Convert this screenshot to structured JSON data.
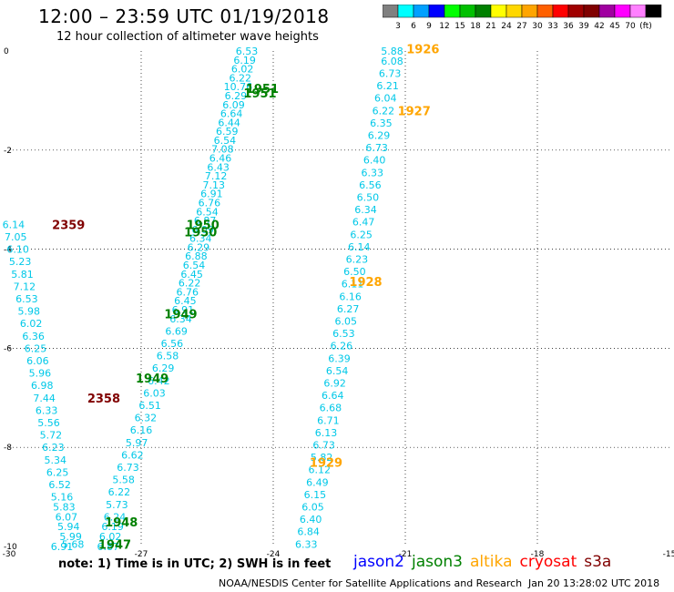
{
  "header": {
    "title": "12:00 – 23:59 UTC 01/19/2018",
    "subtitle": "12 hour collection of altimeter wave heights"
  },
  "colorbar": {
    "labels": [
      "3",
      "6",
      "9",
      "12",
      "15",
      "18",
      "21",
      "24",
      "27",
      "30",
      "33",
      "36",
      "39",
      "42",
      "45",
      "70",
      "(ft)"
    ],
    "colors": [
      "#808080",
      "#00ffff",
      "#00a0ff",
      "#0000ff",
      "#00ff00",
      "#00c000",
      "#008000",
      "#ffff00",
      "#ffd700",
      "#ffa500",
      "#ff6000",
      "#ff0000",
      "#a00000",
      "#800000",
      "#a000a0",
      "#ff00ff",
      "#ff80ff",
      "#000000"
    ]
  },
  "footer": {
    "note": "note: 1) Time is in UTC; 2) SWH is in feet",
    "satellites": [
      {
        "name": "jason2",
        "color": "#0000ff"
      },
      {
        "name": "jason3",
        "color": "#008000"
      },
      {
        "name": "altika",
        "color": "#ffa500"
      },
      {
        "name": "cryosat",
        "color": "#ff0000"
      },
      {
        "name": "s3a",
        "color": "#800000"
      }
    ],
    "credit": "NOAA/NESDIS Center for Satellite Applications and Research",
    "timestamp": "Jan 20 13:28:02 UTC 2018"
  },
  "chart_data": {
    "type": "scatter",
    "title": "12:00 – 23:59 UTC 01/19/2018",
    "subtitle": "12 hour collection of altimeter wave heights",
    "xlim": [
      -30,
      -15
    ],
    "ylim": [
      -10,
      0
    ],
    "x_ticks": [
      -30,
      -27,
      -24,
      -21,
      -18,
      -15
    ],
    "y_ticks": [
      0,
      -2,
      -4,
      -6,
      -8,
      -10
    ],
    "x_tick_labels": [
      "-30",
      "-27",
      "-24",
      "-21",
      "-18",
      "-15"
    ],
    "y_tick_labels": [
      "0",
      "-2",
      "-4",
      "-6",
      "-8",
      "-10"
    ],
    "grid": true,
    "value_color": "#00c8e8",
    "time_labels": [
      {
        "text": "1926",
        "x": -20.6,
        "y": 0.05,
        "color": "#ffa500"
      },
      {
        "text": "1927",
        "x": -20.8,
        "y": -1.2,
        "color": "#ffa500"
      },
      {
        "text": "1928",
        "x": -21.9,
        "y": -4.65,
        "color": "#ffa500"
      },
      {
        "text": "1929",
        "x": -22.8,
        "y": -8.3,
        "color": "#ffa500"
      },
      {
        "text": "1951",
        "x": -24.25,
        "y": -0.75,
        "color": "#008000"
      },
      {
        "text": "1951",
        "x": -24.3,
        "y": -0.85,
        "color": "#008000"
      },
      {
        "text": "1950",
        "x": -25.6,
        "y": -3.5,
        "color": "#008000"
      },
      {
        "text": "1950",
        "x": -25.65,
        "y": -3.65,
        "color": "#008000"
      },
      {
        "text": "1949",
        "x": -26.1,
        "y": -5.3,
        "color": "#008000"
      },
      {
        "text": "1949",
        "x": -26.75,
        "y": -6.6,
        "color": "#008000"
      },
      {
        "text": "1948",
        "x": -27.45,
        "y": -9.5,
        "color": "#008000"
      },
      {
        "text": "1947",
        "x": -27.6,
        "y": -9.95,
        "color": "#008000"
      },
      {
        "text": "2359",
        "x": -28.65,
        "y": -3.5,
        "color": "#800000"
      },
      {
        "text": "2358",
        "x": -27.85,
        "y": -7.0,
        "color": "#800000"
      }
    ],
    "series": [
      {
        "name": "1926",
        "color": "#00c8e8",
        "points": [
          {
            "x": -21.3,
            "y": 0.0,
            "v": "5.88"
          },
          {
            "x": -21.3,
            "y": -0.2,
            "v": "6.08"
          },
          {
            "x": -21.35,
            "y": -0.45,
            "v": "6.73"
          },
          {
            "x": -21.4,
            "y": -0.7,
            "v": "6.21"
          },
          {
            "x": -21.45,
            "y": -0.95,
            "v": "6.04"
          },
          {
            "x": -21.5,
            "y": -1.2,
            "v": "6.22"
          },
          {
            "x": -21.55,
            "y": -1.45,
            "v": "6.35"
          },
          {
            "x": -21.6,
            "y": -1.7,
            "v": "6.29"
          },
          {
            "x": -21.65,
            "y": -1.95,
            "v": "6.73"
          },
          {
            "x": -21.7,
            "y": -2.2,
            "v": "6.40"
          },
          {
            "x": -21.75,
            "y": -2.45,
            "v": "6.33"
          },
          {
            "x": -21.8,
            "y": -2.7,
            "v": "6.56"
          },
          {
            "x": -21.85,
            "y": -2.95,
            "v": "6.50"
          },
          {
            "x": -21.9,
            "y": -3.2,
            "v": "6.34"
          },
          {
            "x": -21.95,
            "y": -3.45,
            "v": "6.47"
          },
          {
            "x": -22.0,
            "y": -3.7,
            "v": "6.25"
          },
          {
            "x": -22.05,
            "y": -3.95,
            "v": "6.14"
          },
          {
            "x": -22.1,
            "y": -4.2,
            "v": "6.23"
          },
          {
            "x": -22.15,
            "y": -4.45,
            "v": "6.50"
          },
          {
            "x": -22.2,
            "y": -4.7,
            "v": "6.11"
          },
          {
            "x": -22.25,
            "y": -4.95,
            "v": "6.16"
          },
          {
            "x": -22.3,
            "y": -5.2,
            "v": "6.27"
          },
          {
            "x": -22.35,
            "y": -5.45,
            "v": "6.05"
          },
          {
            "x": -22.4,
            "y": -5.7,
            "v": "6.53"
          },
          {
            "x": -22.45,
            "y": -5.95,
            "v": "6.26"
          },
          {
            "x": -22.5,
            "y": -6.2,
            "v": "6.39"
          },
          {
            "x": -22.55,
            "y": -6.45,
            "v": "6.54"
          },
          {
            "x": -22.6,
            "y": -6.7,
            "v": "6.92"
          },
          {
            "x": -22.65,
            "y": -6.95,
            "v": "6.64"
          },
          {
            "x": -22.7,
            "y": -7.2,
            "v": "6.68"
          },
          {
            "x": -22.75,
            "y": -7.45,
            "v": "6.71"
          },
          {
            "x": -22.8,
            "y": -7.7,
            "v": "6.13"
          },
          {
            "x": -22.85,
            "y": -7.95,
            "v": "6.73"
          },
          {
            "x": -22.9,
            "y": -8.2,
            "v": "5.82"
          },
          {
            "x": -22.95,
            "y": -8.45,
            "v": "6.12"
          },
          {
            "x": -23.0,
            "y": -8.7,
            "v": "6.49"
          },
          {
            "x": -23.05,
            "y": -8.95,
            "v": "6.15"
          },
          {
            "x": -23.1,
            "y": -9.2,
            "v": "6.05"
          },
          {
            "x": -23.15,
            "y": -9.45,
            "v": "6.40"
          },
          {
            "x": -23.2,
            "y": -9.7,
            "v": "6.84"
          },
          {
            "x": -23.25,
            "y": -9.95,
            "v": "6.33"
          }
        ]
      },
      {
        "name": "1947–1951",
        "color": "#00c8e8",
        "points": [
          {
            "x": -24.6,
            "y": 0.0,
            "v": "6.53"
          },
          {
            "x": -24.65,
            "y": -0.18,
            "v": "6.19"
          },
          {
            "x": -24.7,
            "y": -0.36,
            "v": "6.02"
          },
          {
            "x": -24.75,
            "y": -0.54,
            "v": "6.22"
          },
          {
            "x": -24.8,
            "y": -0.72,
            "v": "10.76"
          },
          {
            "x": -24.85,
            "y": -0.9,
            "v": "6.29"
          },
          {
            "x": -24.9,
            "y": -1.08,
            "v": "6.09"
          },
          {
            "x": -24.95,
            "y": -1.26,
            "v": "6.64"
          },
          {
            "x": -25.0,
            "y": -1.44,
            "v": "6.44"
          },
          {
            "x": -25.05,
            "y": -1.62,
            "v": "6.59"
          },
          {
            "x": -25.1,
            "y": -1.8,
            "v": "6.54"
          },
          {
            "x": -25.15,
            "y": -1.98,
            "v": "7.08"
          },
          {
            "x": -25.2,
            "y": -2.16,
            "v": "6.46"
          },
          {
            "x": -25.25,
            "y": -2.34,
            "v": "6.43"
          },
          {
            "x": -25.3,
            "y": -2.52,
            "v": "7.12"
          },
          {
            "x": -25.35,
            "y": -2.7,
            "v": "7.13"
          },
          {
            "x": -25.4,
            "y": -2.88,
            "v": "6.91"
          },
          {
            "x": -25.45,
            "y": -3.06,
            "v": "6.76"
          },
          {
            "x": -25.5,
            "y": -3.24,
            "v": "6.54"
          },
          {
            "x": -25.55,
            "y": -3.42,
            "v": "6.87"
          },
          {
            "x": -25.6,
            "y": -3.6,
            "v": "6.09"
          },
          {
            "x": -25.65,
            "y": -3.78,
            "v": "6.34"
          },
          {
            "x": -25.7,
            "y": -3.96,
            "v": "6.29"
          },
          {
            "x": -25.75,
            "y": -4.14,
            "v": "6.88"
          },
          {
            "x": -25.8,
            "y": -4.32,
            "v": "6.54"
          },
          {
            "x": -25.85,
            "y": -4.5,
            "v": "6.45"
          },
          {
            "x": -25.9,
            "y": -4.68,
            "v": "6.22"
          },
          {
            "x": -25.95,
            "y": -4.86,
            "v": "6.76"
          },
          {
            "x": -26.0,
            "y": -5.04,
            "v": "6.45"
          },
          {
            "x": -26.05,
            "y": -5.22,
            "v": "6.91"
          },
          {
            "x": -26.1,
            "y": -5.4,
            "v": "6.34"
          },
          {
            "x": -26.2,
            "y": -5.65,
            "v": "6.69"
          },
          {
            "x": -26.3,
            "y": -5.9,
            "v": "6.56"
          },
          {
            "x": -26.4,
            "y": -6.15,
            "v": "6.58"
          },
          {
            "x": -26.5,
            "y": -6.4,
            "v": "6.29"
          },
          {
            "x": -26.6,
            "y": -6.65,
            "v": "6.42"
          },
          {
            "x": -26.7,
            "y": -6.9,
            "v": "6.03"
          },
          {
            "x": -26.8,
            "y": -7.15,
            "v": "6.51"
          },
          {
            "x": -26.9,
            "y": -7.4,
            "v": "6.32"
          },
          {
            "x": -27.0,
            "y": -7.65,
            "v": "6.16"
          },
          {
            "x": -27.1,
            "y": -7.9,
            "v": "5.97"
          },
          {
            "x": -27.2,
            "y": -8.15,
            "v": "6.62"
          },
          {
            "x": -27.3,
            "y": -8.4,
            "v": "6.73"
          },
          {
            "x": -27.4,
            "y": -8.65,
            "v": "5.58"
          },
          {
            "x": -27.5,
            "y": -8.9,
            "v": "6.22"
          },
          {
            "x": -27.55,
            "y": -9.15,
            "v": "5.73"
          },
          {
            "x": -27.6,
            "y": -9.4,
            "v": "6.24"
          },
          {
            "x": -27.65,
            "y": -9.6,
            "v": "6.19"
          },
          {
            "x": -27.7,
            "y": -9.8,
            "v": "6.02"
          },
          {
            "x": -27.75,
            "y": -10.0,
            "v": "6.87"
          }
        ]
      },
      {
        "name": "2358–2359",
        "color": "#00c8e8",
        "points": [
          {
            "x": -29.9,
            "y": -3.5,
            "v": "6.14"
          },
          {
            "x": -29.85,
            "y": -3.75,
            "v": "7.05"
          },
          {
            "x": -29.8,
            "y": -4.0,
            "v": "6.10"
          },
          {
            "x": -29.75,
            "y": -4.25,
            "v": "5.23"
          },
          {
            "x": -29.7,
            "y": -4.5,
            "v": "5.81"
          },
          {
            "x": -29.65,
            "y": -4.75,
            "v": "7.12"
          },
          {
            "x": -29.6,
            "y": -5.0,
            "v": "6.53"
          },
          {
            "x": -29.55,
            "y": -5.25,
            "v": "5.98"
          },
          {
            "x": -29.5,
            "y": -5.5,
            "v": "6.02"
          },
          {
            "x": -29.45,
            "y": -5.75,
            "v": "6.36"
          },
          {
            "x": -29.4,
            "y": -6.0,
            "v": "6.25"
          },
          {
            "x": -29.35,
            "y": -6.25,
            "v": "6.06"
          },
          {
            "x": -29.3,
            "y": -6.5,
            "v": "5.96"
          },
          {
            "x": -29.25,
            "y": -6.75,
            "v": "6.98"
          },
          {
            "x": -29.2,
            "y": -7.0,
            "v": "7.44"
          },
          {
            "x": -29.15,
            "y": -7.25,
            "v": "6.33"
          },
          {
            "x": -29.1,
            "y": -7.5,
            "v": "5.56"
          },
          {
            "x": -29.05,
            "y": -7.75,
            "v": "5.72"
          },
          {
            "x": -29.0,
            "y": -8.0,
            "v": "6.23"
          },
          {
            "x": -28.95,
            "y": -8.25,
            "v": "5.34"
          },
          {
            "x": -28.9,
            "y": -8.5,
            "v": "6.25"
          },
          {
            "x": -28.85,
            "y": -8.75,
            "v": "6.52"
          },
          {
            "x": -28.8,
            "y": -9.0,
            "v": "5.16"
          },
          {
            "x": -28.75,
            "y": -9.2,
            "v": "5.83"
          },
          {
            "x": -28.7,
            "y": -9.4,
            "v": "6.07"
          },
          {
            "x": -28.65,
            "y": -9.6,
            "v": "5.94"
          },
          {
            "x": -28.6,
            "y": -9.8,
            "v": "5.99"
          },
          {
            "x": -28.55,
            "y": -9.95,
            "v": "5.68"
          },
          {
            "x": -28.8,
            "y": -10.0,
            "v": "6.91"
          }
        ]
      }
    ]
  }
}
